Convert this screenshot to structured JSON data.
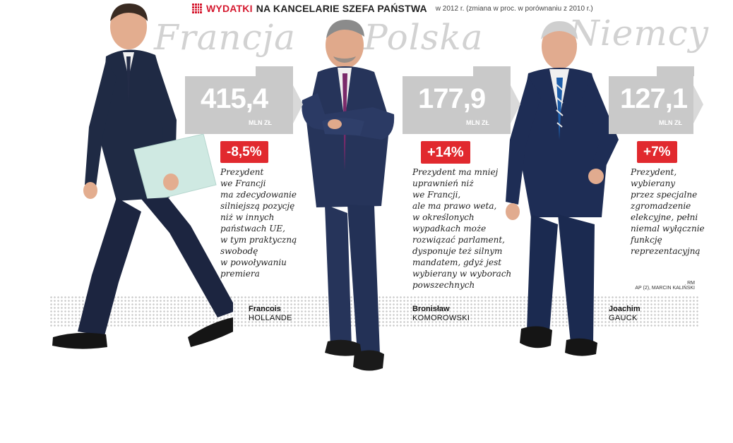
{
  "header": {
    "accent": "WYDATKI",
    "title": "NA KANCELARIE SZEFA PAŃSTWA",
    "subtitle": "w 2012 r. (zmiana w proc. w porównaniu z 2010 r.)"
  },
  "colors": {
    "accent_red": "#e1292e",
    "panel_gray": "#c9c9c9",
    "country_gray": "#d2d2d2"
  },
  "countries": [
    {
      "name": "Francja",
      "value": "415,4",
      "unit": "MLN ZŁ",
      "change": "-8,5%",
      "description": "Prezydent\nwe Francji\nma zdecydowanie\nsilniejszą pozycję\nniż w innych\npaństwach UE,\nw tym praktyczną\nswobodę\nw powoływaniu\npremiera",
      "person_first": "Francois",
      "person_last": "HOLLANDE"
    },
    {
      "name": "Polska",
      "value": "177,9",
      "unit": "MLN ZŁ",
      "change": "+14%",
      "description": "Prezydent ma mniej\nuprawnień niż\nwe Francji,\nale ma prawo weta,\nw określonych\nwypadkach może\nrozwiązać parlament,\ndysponuje też silnym\nmandatem, gdyż jest\nwybierany w wyborach\npowszechnych",
      "person_first": "Bronisław",
      "person_last": "KOMOROWSKI"
    },
    {
      "name": "Niemcy",
      "value": "127,1",
      "unit": "MLN ZŁ",
      "change": "+7%",
      "description": "Prezydent,\nwybierany\nprzez specjalne\nzgromadzenie\nelekcyjne, pełni\nniemal wyłącznie\nfunkcję\nreprezentacyjną",
      "person_first": "Joachim",
      "person_last": "GAUCK"
    }
  ],
  "credits": {
    "author": "RM",
    "photo": "AP (2), MARCIN KALIŃSKI"
  }
}
